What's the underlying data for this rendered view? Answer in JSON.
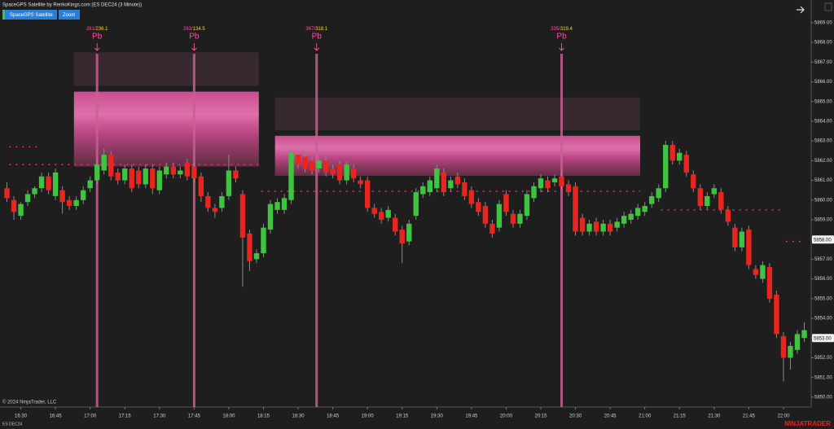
{
  "chart_data": {
    "type": "candlestick",
    "title": "SpaceGPS Satellite by RenkoKings.com (ES DEC24 (3 Minute))",
    "buttons": [
      "SpaceGPS Satellite",
      "Zoom"
    ],
    "instrument": "ES DEC24",
    "copyright": "© 2024 NinjaTrader, LLC",
    "brand": "NINJATRADER",
    "up_color": "#3ec43e",
    "down_color": "#e8251f",
    "grid": false,
    "xlim": [
      "16:21",
      "22:12"
    ],
    "xticks": [
      "16:30",
      "16:45",
      "17:00",
      "17:15",
      "17:30",
      "17:45",
      "18:00",
      "18:15",
      "18:30",
      "18:45",
      "19:00",
      "19:15",
      "19:30",
      "19:45",
      "20:00",
      "20:15",
      "20:30",
      "20:45",
      "21:00",
      "21:15",
      "21:30",
      "21:45",
      "22:00"
    ],
    "ylim": [
      5849.5,
      5870.15
    ],
    "yticks": [
      {
        "value": 5850,
        "label": "5850.00"
      },
      {
        "value": 5851,
        "label": "5851.00"
      },
      {
        "value": 5852,
        "label": "5852.00"
      },
      {
        "value": 5853,
        "label": "5853.00"
      },
      {
        "value": 5854,
        "label": "5854.00"
      },
      {
        "value": 5855,
        "label": "5855.00"
      },
      {
        "value": 5856,
        "label": "5856.00"
      },
      {
        "value": 5857,
        "label": "5857.00"
      },
      {
        "value": 5858,
        "label": "5858.00"
      },
      {
        "value": 5859,
        "label": "5859.00"
      },
      {
        "value": 5860,
        "label": "5860.00"
      },
      {
        "value": 5861,
        "label": "5861.00"
      },
      {
        "value": 5862,
        "label": "5862.00"
      },
      {
        "value": 5863,
        "label": "5863.00"
      },
      {
        "value": 5864,
        "label": "5864.00"
      },
      {
        "value": 5865,
        "label": "5865.00"
      },
      {
        "value": 5866,
        "label": "5866.00"
      },
      {
        "value": 5867,
        "label": "5867.00"
      },
      {
        "value": 5868,
        "label": "5868.00"
      },
      {
        "value": 5869,
        "label": "5869.00"
      }
    ],
    "price_markers": [
      {
        "value": 5858,
        "label": "5858.00"
      },
      {
        "value": 5853,
        "label": "5853.00"
      }
    ],
    "zones": [
      {
        "start": "16:53",
        "end": "18:13",
        "top": 5865.5,
        "bottom": 5861.7,
        "band_top": 5867.5,
        "band_bottom": 5865.8
      },
      {
        "start": "18:20",
        "end": "20:58",
        "top": 5863.26,
        "bottom": 5861.23,
        "band_top": 5865.2,
        "band_bottom": 5863.55
      }
    ],
    "levels": [
      {
        "start": "16:25",
        "end": "18:13",
        "price": 5861.8
      },
      {
        "start": "18:14",
        "end": "20:58",
        "price": 5860.45
      },
      {
        "start": "21:07",
        "end": "21:59",
        "price": 5859.5
      },
      {
        "start": "16:25",
        "end": "16:37",
        "price": 5862.7
      },
      {
        "start": "22:01",
        "end": "22:09",
        "price": 5857.9
      }
    ],
    "signals": [
      {
        "time": "17:03",
        "count": "281/",
        "value": "236.1",
        "label": "Pb"
      },
      {
        "time": "17:45",
        "count": "263/",
        "value": "134.5",
        "label": "Pb"
      },
      {
        "time": "18:38",
        "count": "367/",
        "value": "318.1",
        "label": "Pb"
      },
      {
        "time": "20:24",
        "count": "335/",
        "value": "319.4",
        "label": "Pb"
      }
    ],
    "candles": [
      {
        "t": "16:24",
        "o": 5860.6,
        "h": 5860.9,
        "l": 5859.9,
        "c": 5860.1
      },
      {
        "t": "16:27",
        "o": 5860.0,
        "h": 5860.2,
        "l": 5859.0,
        "c": 5859.4
      },
      {
        "t": "16:30",
        "o": 5859.2,
        "h": 5859.9,
        "l": 5859.0,
        "c": 5859.8
      },
      {
        "t": "16:33",
        "o": 5859.9,
        "h": 5860.5,
        "l": 5859.7,
        "c": 5860.3
      },
      {
        "t": "16:36",
        "o": 5860.3,
        "h": 5860.7,
        "l": 5860.1,
        "c": 5860.6
      },
      {
        "t": "16:39",
        "o": 5860.6,
        "h": 5861.4,
        "l": 5860.4,
        "c": 5861.2
      },
      {
        "t": "16:42",
        "o": 5861.2,
        "h": 5861.4,
        "l": 5860.3,
        "c": 5860.5
      },
      {
        "t": "16:45",
        "o": 5860.2,
        "h": 5861.6,
        "l": 5860.0,
        "c": 5861.4
      },
      {
        "t": "16:48",
        "o": 5860.5,
        "h": 5860.7,
        "l": 5859.3,
        "c": 5859.9
      },
      {
        "t": "16:51",
        "o": 5860.0,
        "h": 5860.2,
        "l": 5859.5,
        "c": 5859.7
      },
      {
        "t": "16:54",
        "o": 5859.7,
        "h": 5860.2,
        "l": 5859.5,
        "c": 5860.0
      },
      {
        "t": "16:57",
        "o": 5860.0,
        "h": 5860.7,
        "l": 5859.8,
        "c": 5860.5
      },
      {
        "t": "17:00",
        "o": 5860.6,
        "h": 5861.2,
        "l": 5860.4,
        "c": 5861.0
      },
      {
        "t": "17:03",
        "o": 5861.0,
        "h": 5862.1,
        "l": 5860.8,
        "c": 5861.8
      },
      {
        "t": "17:06",
        "o": 5861.5,
        "h": 5862.6,
        "l": 5861.3,
        "c": 5862.3
      },
      {
        "t": "17:09",
        "o": 5862.3,
        "h": 5862.5,
        "l": 5861.0,
        "c": 5861.2
      },
      {
        "t": "17:12",
        "o": 5861.4,
        "h": 5861.6,
        "l": 5860.8,
        "c": 5861.0
      },
      {
        "t": "17:15",
        "o": 5861.0,
        "h": 5861.8,
        "l": 5860.8,
        "c": 5861.6
      },
      {
        "t": "17:18",
        "o": 5861.6,
        "h": 5861.8,
        "l": 5860.4,
        "c": 5860.6
      },
      {
        "t": "17:21",
        "o": 5861.5,
        "h": 5861.7,
        "l": 5860.6,
        "c": 5860.8
      },
      {
        "t": "17:24",
        "o": 5860.8,
        "h": 5861.8,
        "l": 5860.6,
        "c": 5861.6
      },
      {
        "t": "17:27",
        "o": 5861.6,
        "h": 5861.8,
        "l": 5860.3,
        "c": 5860.6
      },
      {
        "t": "17:30",
        "o": 5860.5,
        "h": 5861.7,
        "l": 5860.3,
        "c": 5861.5
      },
      {
        "t": "17:33",
        "o": 5861.3,
        "h": 5861.9,
        "l": 5861.1,
        "c": 5861.7
      },
      {
        "t": "17:36",
        "o": 5861.7,
        "h": 5861.9,
        "l": 5861.1,
        "c": 5861.3
      },
      {
        "t": "17:39",
        "o": 5861.3,
        "h": 5861.7,
        "l": 5861.1,
        "c": 5861.5
      },
      {
        "t": "17:42",
        "o": 5861.9,
        "h": 5862.1,
        "l": 5861.0,
        "c": 5861.2
      },
      {
        "t": "17:45",
        "o": 5861.7,
        "h": 5861.9,
        "l": 5860.9,
        "c": 5861.1
      },
      {
        "t": "17:48",
        "o": 5861.2,
        "h": 5861.4,
        "l": 5859.9,
        "c": 5860.2
      },
      {
        "t": "17:51",
        "o": 5860.2,
        "h": 5860.4,
        "l": 5859.4,
        "c": 5859.6
      },
      {
        "t": "17:54",
        "o": 5859.6,
        "h": 5859.8,
        "l": 5859.1,
        "c": 5859.4
      },
      {
        "t": "17:57",
        "o": 5859.6,
        "h": 5860.4,
        "l": 5859.4,
        "c": 5860.2
      },
      {
        "t": "18:00",
        "o": 5860.2,
        "h": 5862.3,
        "l": 5860.0,
        "c": 5861.5
      },
      {
        "t": "18:03",
        "o": 5861.5,
        "h": 5861.7,
        "l": 5860.9,
        "c": 5861.1
      },
      {
        "t": "18:06",
        "o": 5860.3,
        "h": 5860.5,
        "l": 5855.6,
        "c": 5858.1
      },
      {
        "t": "18:09",
        "o": 5858.3,
        "h": 5858.5,
        "l": 5856.4,
        "c": 5856.9
      },
      {
        "t": "18:12",
        "o": 5857.0,
        "h": 5857.5,
        "l": 5856.8,
        "c": 5857.3
      },
      {
        "t": "18:15",
        "o": 5857.3,
        "h": 5858.8,
        "l": 5857.1,
        "c": 5858.6
      },
      {
        "t": "18:18",
        "o": 5858.5,
        "h": 5860.0,
        "l": 5858.3,
        "c": 5859.8
      },
      {
        "t": "18:21",
        "o": 5859.5,
        "h": 5860.1,
        "l": 5859.3,
        "c": 5859.9
      },
      {
        "t": "18:24",
        "o": 5859.5,
        "h": 5860.3,
        "l": 5859.3,
        "c": 5860.1
      },
      {
        "t": "18:27",
        "o": 5860.0,
        "h": 5862.6,
        "l": 5859.8,
        "c": 5862.4
      },
      {
        "t": "18:30",
        "o": 5862.3,
        "h": 5862.5,
        "l": 5861.6,
        "c": 5861.8
      },
      {
        "t": "18:33",
        "o": 5862.2,
        "h": 5862.4,
        "l": 5861.4,
        "c": 5861.6
      },
      {
        "t": "18:36",
        "o": 5862.0,
        "h": 5862.2,
        "l": 5861.3,
        "c": 5861.5
      },
      {
        "t": "18:39",
        "o": 5861.6,
        "h": 5862.2,
        "l": 5861.4,
        "c": 5862.0
      },
      {
        "t": "18:42",
        "o": 5862.0,
        "h": 5862.2,
        "l": 5861.2,
        "c": 5861.4
      },
      {
        "t": "18:45",
        "o": 5861.6,
        "h": 5861.8,
        "l": 5861.1,
        "c": 5861.3
      },
      {
        "t": "18:48",
        "o": 5861.8,
        "h": 5862.0,
        "l": 5860.8,
        "c": 5861.0
      },
      {
        "t": "18:51",
        "o": 5861.0,
        "h": 5862.0,
        "l": 5860.8,
        "c": 5861.8
      },
      {
        "t": "18:54",
        "o": 5861.6,
        "h": 5861.8,
        "l": 5860.9,
        "c": 5861.1
      },
      {
        "t": "18:57",
        "o": 5861.0,
        "h": 5861.2,
        "l": 5860.6,
        "c": 5860.8
      },
      {
        "t": "19:00",
        "o": 5861.0,
        "h": 5861.2,
        "l": 5859.4,
        "c": 5859.6
      },
      {
        "t": "19:03",
        "o": 5859.6,
        "h": 5859.8,
        "l": 5859.1,
        "c": 5859.3
      },
      {
        "t": "19:06",
        "o": 5859.4,
        "h": 5859.6,
        "l": 5858.8,
        "c": 5859.0
      },
      {
        "t": "19:09",
        "o": 5859.1,
        "h": 5859.7,
        "l": 5858.9,
        "c": 5859.5
      },
      {
        "t": "19:12",
        "o": 5859.1,
        "h": 5859.3,
        "l": 5858.2,
        "c": 5858.4
      },
      {
        "t": "19:15",
        "o": 5858.5,
        "h": 5858.7,
        "l": 5856.8,
        "c": 5857.8
      },
      {
        "t": "19:18",
        "o": 5857.9,
        "h": 5859.0,
        "l": 5857.7,
        "c": 5858.8
      },
      {
        "t": "19:21",
        "o": 5859.2,
        "h": 5860.6,
        "l": 5859.0,
        "c": 5860.4
      },
      {
        "t": "19:24",
        "o": 5860.3,
        "h": 5860.9,
        "l": 5860.1,
        "c": 5860.7
      },
      {
        "t": "19:27",
        "o": 5860.4,
        "h": 5861.2,
        "l": 5860.2,
        "c": 5861.0
      },
      {
        "t": "19:30",
        "o": 5860.6,
        "h": 5861.8,
        "l": 5860.4,
        "c": 5861.6
      },
      {
        "t": "19:33",
        "o": 5861.4,
        "h": 5861.6,
        "l": 5860.2,
        "c": 5860.4
      },
      {
        "t": "19:36",
        "o": 5860.6,
        "h": 5861.2,
        "l": 5860.4,
        "c": 5861.0
      },
      {
        "t": "19:39",
        "o": 5861.2,
        "h": 5861.4,
        "l": 5860.6,
        "c": 5860.8
      },
      {
        "t": "19:42",
        "o": 5860.9,
        "h": 5861.1,
        "l": 5860.0,
        "c": 5860.2
      },
      {
        "t": "19:45",
        "o": 5860.5,
        "h": 5860.7,
        "l": 5859.6,
        "c": 5859.8
      },
      {
        "t": "19:48",
        "o": 5859.9,
        "h": 5860.1,
        "l": 5859.2,
        "c": 5859.4
      },
      {
        "t": "19:51",
        "o": 5859.7,
        "h": 5859.9,
        "l": 5858.6,
        "c": 5858.8
      },
      {
        "t": "19:54",
        "o": 5858.8,
        "h": 5859.0,
        "l": 5858.1,
        "c": 5858.3
      },
      {
        "t": "19:57",
        "o": 5858.6,
        "h": 5860.0,
        "l": 5858.4,
        "c": 5859.8
      },
      {
        "t": "20:00",
        "o": 5860.3,
        "h": 5860.5,
        "l": 5859.2,
        "c": 5859.4
      },
      {
        "t": "20:03",
        "o": 5859.3,
        "h": 5859.5,
        "l": 5858.6,
        "c": 5858.8
      },
      {
        "t": "20:06",
        "o": 5858.8,
        "h": 5859.5,
        "l": 5858.6,
        "c": 5859.3
      },
      {
        "t": "20:09",
        "o": 5859.2,
        "h": 5860.5,
        "l": 5859.0,
        "c": 5860.3
      },
      {
        "t": "20:12",
        "o": 5860.1,
        "h": 5860.9,
        "l": 5859.9,
        "c": 5860.7
      },
      {
        "t": "20:15",
        "o": 5860.6,
        "h": 5861.3,
        "l": 5860.4,
        "c": 5861.1
      },
      {
        "t": "20:18",
        "o": 5861.0,
        "h": 5861.2,
        "l": 5860.4,
        "c": 5860.6
      },
      {
        "t": "20:21",
        "o": 5860.9,
        "h": 5861.3,
        "l": 5860.7,
        "c": 5861.1
      },
      {
        "t": "20:24",
        "o": 5861.2,
        "h": 5861.4,
        "l": 5860.5,
        "c": 5860.7
      },
      {
        "t": "20:27",
        "o": 5860.8,
        "h": 5861.0,
        "l": 5860.2,
        "c": 5860.4
      },
      {
        "t": "20:30",
        "o": 5860.7,
        "h": 5860.9,
        "l": 5858.2,
        "c": 5858.4
      },
      {
        "t": "20:33",
        "o": 5859.1,
        "h": 5859.3,
        "l": 5858.2,
        "c": 5858.4
      },
      {
        "t": "20:36",
        "o": 5858.4,
        "h": 5859.0,
        "l": 5858.2,
        "c": 5858.8
      },
      {
        "t": "20:39",
        "o": 5858.9,
        "h": 5859.1,
        "l": 5858.2,
        "c": 5858.4
      },
      {
        "t": "20:42",
        "o": 5858.4,
        "h": 5859.0,
        "l": 5858.2,
        "c": 5858.8
      },
      {
        "t": "20:45",
        "o": 5858.8,
        "h": 5859.0,
        "l": 5858.2,
        "c": 5858.4
      },
      {
        "t": "20:48",
        "o": 5858.6,
        "h": 5859.1,
        "l": 5858.4,
        "c": 5858.9
      },
      {
        "t": "20:51",
        "o": 5858.8,
        "h": 5859.4,
        "l": 5858.6,
        "c": 5859.2
      },
      {
        "t": "20:54",
        "o": 5859.0,
        "h": 5859.5,
        "l": 5858.8,
        "c": 5859.3
      },
      {
        "t": "20:57",
        "o": 5859.2,
        "h": 5859.8,
        "l": 5859.0,
        "c": 5859.6
      },
      {
        "t": "21:00",
        "o": 5859.4,
        "h": 5859.9,
        "l": 5859.2,
        "c": 5859.7
      },
      {
        "t": "21:03",
        "o": 5859.8,
        "h": 5860.4,
        "l": 5859.6,
        "c": 5860.2
      },
      {
        "t": "21:06",
        "o": 5860.1,
        "h": 5860.8,
        "l": 5859.9,
        "c": 5860.6
      },
      {
        "t": "21:09",
        "o": 5860.6,
        "h": 5863.0,
        "l": 5860.4,
        "c": 5862.8
      },
      {
        "t": "21:12",
        "o": 5862.8,
        "h": 5863.0,
        "l": 5861.8,
        "c": 5862.0
      },
      {
        "t": "21:15",
        "o": 5862.0,
        "h": 5862.6,
        "l": 5861.8,
        "c": 5862.4
      },
      {
        "t": "21:18",
        "o": 5862.3,
        "h": 5862.5,
        "l": 5861.2,
        "c": 5861.4
      },
      {
        "t": "21:21",
        "o": 5861.3,
        "h": 5861.5,
        "l": 5860.4,
        "c": 5860.6
      },
      {
        "t": "21:24",
        "o": 5860.6,
        "h": 5860.8,
        "l": 5859.5,
        "c": 5859.7
      },
      {
        "t": "21:27",
        "o": 5859.7,
        "h": 5860.4,
        "l": 5859.5,
        "c": 5860.2
      },
      {
        "t": "21:30",
        "o": 5860.3,
        "h": 5860.8,
        "l": 5860.1,
        "c": 5860.6
      },
      {
        "t": "21:33",
        "o": 5860.4,
        "h": 5860.6,
        "l": 5859.3,
        "c": 5859.5
      },
      {
        "t": "21:36",
        "o": 5859.5,
        "h": 5859.7,
        "l": 5858.7,
        "c": 5858.9
      },
      {
        "t": "21:39",
        "o": 5858.6,
        "h": 5858.8,
        "l": 5857.4,
        "c": 5857.6
      },
      {
        "t": "21:42",
        "o": 5857.6,
        "h": 5858.6,
        "l": 5857.4,
        "c": 5858.4
      },
      {
        "t": "21:45",
        "o": 5858.5,
        "h": 5858.7,
        "l": 5856.5,
        "c": 5856.7
      },
      {
        "t": "21:48",
        "o": 5856.5,
        "h": 5856.7,
        "l": 5856.0,
        "c": 5856.2
      },
      {
        "t": "21:51",
        "o": 5856.0,
        "h": 5856.9,
        "l": 5855.8,
        "c": 5856.7
      },
      {
        "t": "21:54",
        "o": 5856.6,
        "h": 5856.8,
        "l": 5854.8,
        "c": 5855.0
      },
      {
        "t": "21:57",
        "o": 5855.2,
        "h": 5855.4,
        "l": 5853.0,
        "c": 5853.2
      },
      {
        "t": "22:00",
        "o": 5853.1,
        "h": 5853.3,
        "l": 5850.8,
        "c": 5852.0
      },
      {
        "t": "22:03",
        "o": 5852.0,
        "h": 5852.8,
        "l": 5851.4,
        "c": 5852.6
      },
      {
        "t": "22:06",
        "o": 5852.4,
        "h": 5853.4,
        "l": 5852.2,
        "c": 5853.2
      },
      {
        "t": "22:09",
        "o": 5853.0,
        "h": 5853.8,
        "l": 5852.8,
        "c": 5853.4
      }
    ]
  }
}
